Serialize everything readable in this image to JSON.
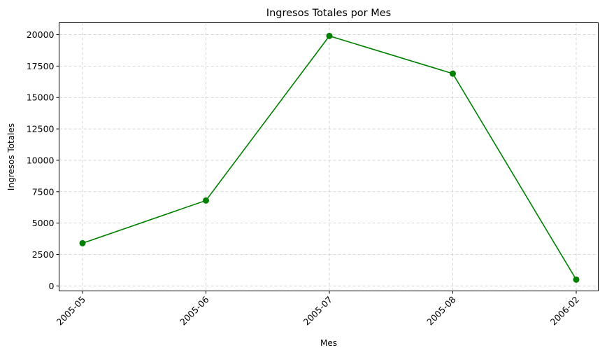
{
  "chart_data": {
    "type": "line",
    "title": "Ingresos Totales por Mes",
    "xlabel": "Mes",
    "ylabel": "Ingresos Totales",
    "categories": [
      "2005-05",
      "2005-06",
      "2005-07",
      "2005-08",
      "2006-02"
    ],
    "values": [
      3400,
      6800,
      19900,
      16900,
      500
    ],
    "ylim": [
      -400,
      20950
    ],
    "yticks": [
      0,
      2500,
      5000,
      7500,
      10000,
      12500,
      15000,
      17500,
      20000
    ],
    "ytick_labels": [
      "0",
      "2500",
      "5000",
      "7500",
      "10000",
      "12500",
      "15000",
      "17500",
      "20000"
    ],
    "grid": true,
    "grid_style": "dashed",
    "line_color": "#008000",
    "marker": "circle",
    "x_tick_rotation": "45"
  }
}
